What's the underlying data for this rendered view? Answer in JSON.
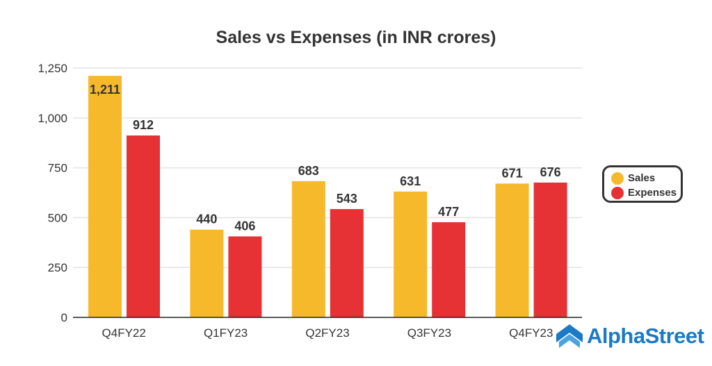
{
  "chart_data": {
    "type": "bar",
    "title": "Sales vs Expenses (in INR crores)",
    "xlabel": "",
    "ylabel": "",
    "categories": [
      "Q4FY22",
      "Q1FY23",
      "Q2FY23",
      "Q3FY23",
      "Q4FY23"
    ],
    "series": [
      {
        "name": "Sales",
        "color": "#f6b92b",
        "values": [
          1211,
          440,
          683,
          631,
          671
        ],
        "labels": [
          "1,211",
          "440",
          "683",
          "631",
          "671"
        ]
      },
      {
        "name": "Expenses",
        "color": "#e63234",
        "values": [
          912,
          406,
          543,
          477,
          676
        ],
        "labels": [
          "912",
          "406",
          "543",
          "477",
          "676"
        ]
      }
    ],
    "ylim": [
      0,
      1250
    ],
    "yticks": [
      0,
      250,
      500,
      750,
      1000,
      1250
    ],
    "ytick_labels": [
      "0",
      "250",
      "500",
      "750",
      "1,000",
      "1,250"
    ],
    "grid": true,
    "legend_position": "right"
  },
  "brand": {
    "name": "AlphaStreet",
    "color": "#1a7ac4"
  }
}
